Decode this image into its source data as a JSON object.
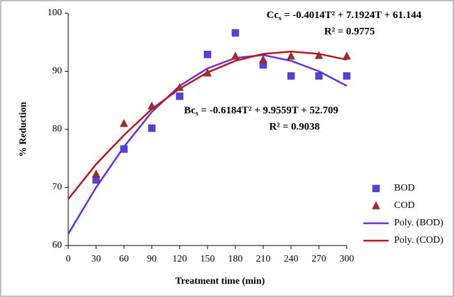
{
  "chart_data": {
    "type": "scatter",
    "x_label": "Treatment time (min)",
    "y_label": "% Reduction",
    "xlim": [
      0,
      300
    ],
    "xticks": [
      0,
      30,
      60,
      90,
      120,
      150,
      180,
      210,
      240,
      270,
      300
    ],
    "ylim": [
      60,
      100
    ],
    "yticks": [
      60,
      70,
      80,
      90,
      100
    ],
    "series": [
      {
        "name": "BOD",
        "marker": "square",
        "color": "#5b3fd6",
        "x": [
          30,
          60,
          90,
          120,
          150,
          180,
          210,
          240,
          270,
          300
        ],
        "values": [
          71.3,
          76.6,
          80.2,
          85.7,
          92.9,
          96.6,
          91.1,
          89.2,
          89.2,
          89.2
        ]
      },
      {
        "name": "COD",
        "marker": "triangle",
        "color": "#a52a2a",
        "x": [
          30,
          60,
          90,
          120,
          150,
          180,
          210,
          240,
          270,
          300
        ],
        "values": [
          72.3,
          81,
          84,
          87.2,
          89.7,
          92.6,
          92,
          92.6,
          92.7,
          92.6
        ]
      },
      {
        "name": "Poly. (BOD)",
        "marker": "line",
        "color": "#6a2ce0",
        "x": [
          0,
          30,
          60,
          90,
          120,
          150,
          180,
          210,
          240,
          270,
          300
        ],
        "values": [
          62,
          70,
          77,
          83,
          87.5,
          90.5,
          92.3,
          92.8,
          91.8,
          90,
          87.5
        ]
      },
      {
        "name": "Poly. (COD)",
        "marker": "line",
        "color": "#c0141c",
        "x": [
          0,
          30,
          60,
          90,
          120,
          150,
          180,
          210,
          240,
          270,
          300
        ],
        "values": [
          68,
          74,
          79,
          83.5,
          87,
          89.8,
          91.8,
          93,
          93.4,
          93,
          92
        ]
      }
    ],
    "annotations": [
      {
        "symbol": "Cc",
        "sub": "s",
        "equation": " = -0.4014T² + 7.1924T + 61.144",
        "r2": "R² = 0.9775",
        "color": "#a0522d"
      },
      {
        "symbol": "Bc",
        "sub": "s",
        "equation": " = -0.6184T² + 9.9559T + 52.709",
        "r2": "R² = 0.9038",
        "color": "#1f2fd6"
      }
    ]
  }
}
